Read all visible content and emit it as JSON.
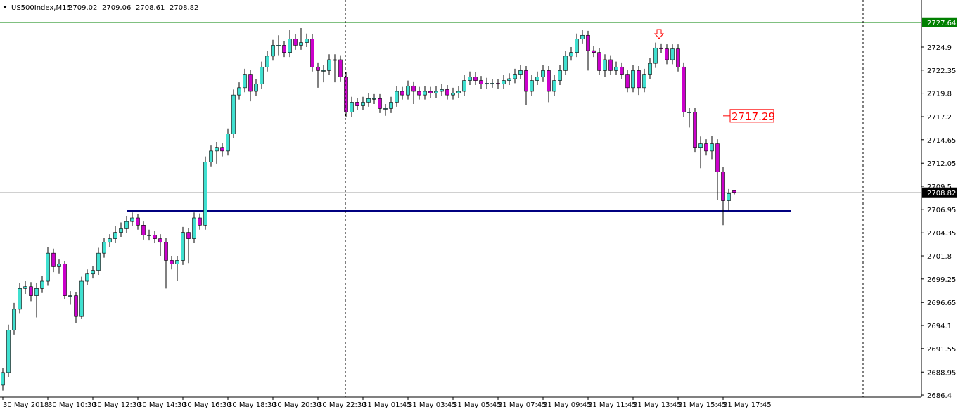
{
  "chart_data": {
    "type": "candlestick",
    "title": "US500Index,M15",
    "up_color": "#40e0d0",
    "down_color": "#cc00cc",
    "ylim": [
      2686.17,
      2730.11
    ],
    "yticks": [
      2724.9,
      2722.35,
      2719.8,
      2717.2,
      2714.65,
      2712.05,
      2709.5,
      2706.95,
      2704.35,
      2701.8,
      2699.25,
      2696.65,
      2694.1,
      2691.55,
      2688.95,
      2686.4
    ],
    "xticks": [
      {
        "value": 0,
        "label": "30 May 2018"
      },
      {
        "value": 8,
        "label": "30 May 10:30"
      },
      {
        "value": 16,
        "label": "30 May 12:30"
      },
      {
        "value": 24,
        "label": "30 May 14:30"
      },
      {
        "value": 32,
        "label": "30 May 16:30"
      },
      {
        "value": 40,
        "label": "30 May 18:30"
      },
      {
        "value": 48,
        "label": "30 May 20:30"
      },
      {
        "value": 56,
        "label": "30 May 22:30"
      },
      {
        "value": 64,
        "label": "31 May 01:45"
      },
      {
        "value": 72,
        "label": "31 May 03:45"
      },
      {
        "value": 80,
        "label": "31 May 05:45"
      },
      {
        "value": 88,
        "label": "31 May 07:45"
      },
      {
        "value": 96,
        "label": "31 May 09:45"
      },
      {
        "value": 104,
        "label": "31 May 11:45"
      },
      {
        "value": 112,
        "label": "31 May 13:45"
      },
      {
        "value": 120,
        "label": "31 May 15:45"
      },
      {
        "value": 128,
        "label": "31 May 17:45"
      }
    ],
    "resistance": {
      "value": 2727.64,
      "color": "#008000"
    },
    "support": {
      "value": 2706.78,
      "color": "#000080"
    },
    "current_price": 2708.82,
    "annotation": {
      "value": 2717.29,
      "label": "2717.29",
      "color": "#ff0000"
    },
    "ohlc": [
      [
        2687.5,
        2689.4,
        2686.9,
        2688.9
      ],
      [
        2688.9,
        2694.2,
        2688.4,
        2693.6
      ],
      [
        2693.6,
        2696.6,
        2693.1,
        2695.9
      ],
      [
        2695.9,
        2698.8,
        2695.4,
        2698.2
      ],
      [
        2698.2,
        2699.0,
        2697.6,
        2698.4
      ],
      [
        2698.4,
        2698.9,
        2696.8,
        2697.4
      ],
      [
        2697.4,
        2698.8,
        2695.0,
        2698.2
      ],
      [
        2698.2,
        2699.6,
        2697.7,
        2699.0
      ],
      [
        2699.0,
        2702.8,
        2698.5,
        2702.1
      ],
      [
        2702.1,
        2702.6,
        2700.0,
        2700.6
      ],
      [
        2700.6,
        2701.4,
        2699.8,
        2700.9
      ],
      [
        2700.9,
        2701.2,
        2697.0,
        2697.4
      ],
      [
        2697.4,
        2697.9,
        2696.4,
        2697.4
      ],
      [
        2697.4,
        2697.8,
        2694.4,
        2695.1
      ],
      [
        2695.1,
        2699.5,
        2694.8,
        2699.0
      ],
      [
        2699.0,
        2700.3,
        2698.6,
        2699.8
      ],
      [
        2699.8,
        2700.7,
        2699.3,
        2700.2
      ],
      [
        2700.2,
        2702.7,
        2699.7,
        2702.1
      ],
      [
        2702.1,
        2703.8,
        2701.6,
        2703.3
      ],
      [
        2703.3,
        2704.2,
        2702.8,
        2703.7
      ],
      [
        2703.7,
        2705.1,
        2703.2,
        2704.4
      ],
      [
        2704.4,
        2705.5,
        2703.9,
        2704.8
      ],
      [
        2704.8,
        2706.2,
        2704.3,
        2705.6
      ],
      [
        2705.6,
        2706.6,
        2705.1,
        2706.0
      ],
      [
        2706.0,
        2706.4,
        2704.7,
        2705.2
      ],
      [
        2705.2,
        2705.6,
        2703.6,
        2704.1
      ],
      [
        2704.1,
        2704.7,
        2703.5,
        2704.1
      ],
      [
        2704.1,
        2704.6,
        2703.2,
        2703.7
      ],
      [
        2703.7,
        2704.2,
        2701.8,
        2703.3
      ],
      [
        2703.3,
        2703.8,
        2698.2,
        2701.3
      ],
      [
        2701.3,
        2701.8,
        2700.3,
        2700.9
      ],
      [
        2700.9,
        2701.8,
        2699.0,
        2701.3
      ],
      [
        2701.3,
        2705.0,
        2700.8,
        2704.4
      ],
      [
        2704.4,
        2704.9,
        2701.0,
        2703.7
      ],
      [
        2703.7,
        2706.6,
        2703.2,
        2706.0
      ],
      [
        2706.0,
        2706.5,
        2704.7,
        2705.2
      ],
      [
        2705.2,
        2712.8,
        2704.7,
        2712.2
      ],
      [
        2712.2,
        2714.0,
        2711.7,
        2713.4
      ],
      [
        2713.4,
        2714.4,
        2712.0,
        2713.8
      ],
      [
        2713.8,
        2714.3,
        2712.8,
        2713.4
      ],
      [
        2713.4,
        2715.9,
        2712.9,
        2715.3
      ],
      [
        2715.3,
        2720.2,
        2714.8,
        2719.6
      ],
      [
        2719.6,
        2721.0,
        2719.1,
        2720.4
      ],
      [
        2720.4,
        2722.5,
        2719.9,
        2721.9
      ],
      [
        2721.9,
        2722.4,
        2718.9,
        2720.0
      ],
      [
        2720.0,
        2721.4,
        2719.5,
        2720.8
      ],
      [
        2720.8,
        2723.3,
        2720.3,
        2722.7
      ],
      [
        2722.7,
        2724.5,
        2722.2,
        2723.9
      ],
      [
        2723.9,
        2725.7,
        2723.4,
        2725.1
      ],
      [
        2725.1,
        2726.2,
        2724.0,
        2725.1
      ],
      [
        2725.1,
        2725.6,
        2723.8,
        2724.3
      ],
      [
        2724.3,
        2726.8,
        2723.8,
        2725.8
      ],
      [
        2725.8,
        2726.3,
        2724.6,
        2725.1
      ],
      [
        2725.1,
        2727.0,
        2724.6,
        2725.4
      ],
      [
        2725.4,
        2726.4,
        2724.9,
        2725.8
      ],
      [
        2725.8,
        2726.3,
        2722.2,
        2722.7
      ],
      [
        2722.7,
        2723.2,
        2720.4,
        2722.3
      ],
      [
        2722.3,
        2722.9,
        2721.0,
        2722.3
      ],
      [
        2722.3,
        2724.1,
        2721.8,
        2723.5
      ],
      [
        2723.5,
        2724.1,
        2721.0,
        2723.5
      ],
      [
        2723.5,
        2724.0,
        2721.1,
        2721.6
      ],
      [
        2721.6,
        2722.1,
        2717.2,
        2717.7
      ],
      [
        2717.7,
        2719.4,
        2717.2,
        2718.8
      ],
      [
        2718.8,
        2719.3,
        2717.9,
        2718.4
      ],
      [
        2718.4,
        2719.4,
        2717.9,
        2718.8
      ],
      [
        2718.8,
        2719.8,
        2718.3,
        2719.2
      ],
      [
        2719.2,
        2719.7,
        2718.6,
        2719.2
      ],
      [
        2719.2,
        2719.7,
        2717.6,
        2718.1
      ],
      [
        2718.1,
        2718.6,
        2717.3,
        2718.1
      ],
      [
        2718.1,
        2719.4,
        2717.6,
        2718.8
      ],
      [
        2718.8,
        2720.6,
        2718.3,
        2720.0
      ],
      [
        2720.0,
        2720.5,
        2719.1,
        2719.6
      ],
      [
        2719.6,
        2721.2,
        2719.1,
        2720.6
      ],
      [
        2720.6,
        2721.1,
        2718.6,
        2720.0
      ],
      [
        2720.0,
        2720.5,
        2719.1,
        2719.6
      ],
      [
        2719.6,
        2720.6,
        2719.1,
        2720.0
      ],
      [
        2720.0,
        2720.5,
        2719.3,
        2719.8
      ],
      [
        2719.8,
        2720.6,
        2719.3,
        2720.0
      ],
      [
        2720.0,
        2720.8,
        2719.5,
        2720.2
      ],
      [
        2720.2,
        2720.7,
        2719.1,
        2719.6
      ],
      [
        2719.6,
        2720.4,
        2719.1,
        2719.8
      ],
      [
        2719.8,
        2720.6,
        2719.3,
        2720.0
      ],
      [
        2720.0,
        2721.8,
        2719.5,
        2721.2
      ],
      [
        2721.2,
        2722.2,
        2720.7,
        2721.6
      ],
      [
        2721.6,
        2722.1,
        2720.7,
        2721.2
      ],
      [
        2721.2,
        2721.7,
        2720.3,
        2720.8
      ],
      [
        2720.8,
        2721.5,
        2720.3,
        2720.9
      ],
      [
        2720.9,
        2721.4,
        2720.4,
        2720.9
      ],
      [
        2720.9,
        2721.4,
        2720.3,
        2720.8
      ],
      [
        2720.8,
        2721.8,
        2720.3,
        2721.2
      ],
      [
        2721.2,
        2722.0,
        2720.7,
        2721.4
      ],
      [
        2721.4,
        2722.5,
        2720.9,
        2721.9
      ],
      [
        2721.9,
        2722.9,
        2721.4,
        2722.3
      ],
      [
        2722.3,
        2722.8,
        2718.5,
        2720.0
      ],
      [
        2720.0,
        2721.8,
        2719.5,
        2721.2
      ],
      [
        2721.2,
        2722.2,
        2720.7,
        2721.6
      ],
      [
        2721.6,
        2722.9,
        2721.1,
        2722.3
      ],
      [
        2722.3,
        2722.8,
        2718.8,
        2720.0
      ],
      [
        2720.0,
        2721.8,
        2719.5,
        2721.2
      ],
      [
        2721.2,
        2722.9,
        2720.7,
        2722.3
      ],
      [
        2722.3,
        2724.5,
        2721.8,
        2723.9
      ],
      [
        2723.9,
        2724.9,
        2723.4,
        2724.3
      ],
      [
        2724.3,
        2726.4,
        2723.8,
        2725.8
      ],
      [
        2725.8,
        2726.8,
        2725.3,
        2726.2
      ],
      [
        2726.2,
        2726.7,
        2722.3,
        2724.5
      ],
      [
        2724.5,
        2725.0,
        2723.8,
        2724.3
      ],
      [
        2724.3,
        2724.8,
        2721.8,
        2722.3
      ],
      [
        2722.3,
        2724.1,
        2721.6,
        2723.5
      ],
      [
        2723.5,
        2724.0,
        2721.8,
        2722.3
      ],
      [
        2722.3,
        2723.3,
        2721.8,
        2722.7
      ],
      [
        2722.7,
        2723.2,
        2721.4,
        2721.9
      ],
      [
        2721.9,
        2722.4,
        2719.9,
        2720.4
      ],
      [
        2720.4,
        2722.9,
        2719.9,
        2722.3
      ],
      [
        2722.3,
        2722.8,
        2719.6,
        2720.4
      ],
      [
        2720.4,
        2722.5,
        2719.9,
        2721.9
      ],
      [
        2721.9,
        2723.7,
        2721.4,
        2723.1
      ],
      [
        2723.1,
        2725.4,
        2722.6,
        2724.8
      ],
      [
        2724.8,
        2725.3,
        2724.2,
        2724.7
      ],
      [
        2724.7,
        2725.2,
        2723.0,
        2723.5
      ],
      [
        2723.5,
        2725.2,
        2723.0,
        2724.7
      ],
      [
        2724.7,
        2725.2,
        2722.2,
        2722.7
      ],
      [
        2722.7,
        2723.2,
        2717.2,
        2717.7
      ],
      [
        2717.7,
        2718.2,
        2716.0,
        2717.7
      ],
      [
        2717.7,
        2718.2,
        2713.3,
        2713.8
      ],
      [
        2713.8,
        2715.0,
        2711.5,
        2714.2
      ],
      [
        2714.2,
        2714.7,
        2712.9,
        2713.4
      ],
      [
        2713.4,
        2715.1,
        2712.5,
        2714.2
      ],
      [
        2714.2,
        2714.7,
        2708.0,
        2711.1
      ],
      [
        2711.1,
        2711.6,
        2705.2,
        2707.9
      ],
      [
        2707.9,
        2709.2,
        2706.8,
        2708.7
      ],
      [
        2709.02,
        2709.06,
        2708.61,
        2708.82
      ]
    ]
  }
}
